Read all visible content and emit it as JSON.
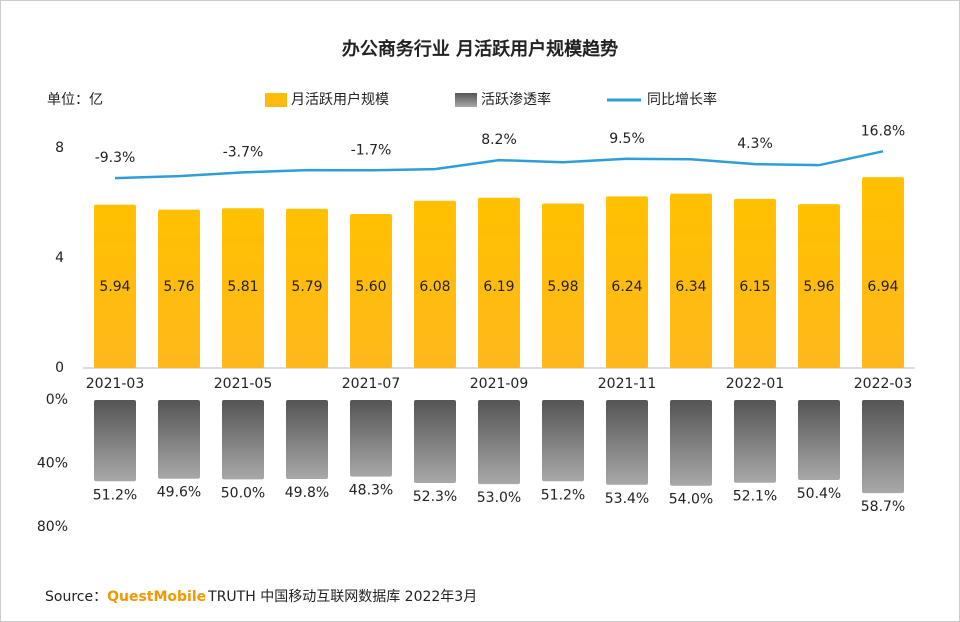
{
  "chart_data": [
    {
      "type": "bar",
      "title": "办公商务行业 月活跃用户规模趋势",
      "y_label": "单位：亿",
      "categories": [
        "2021-03",
        null,
        "2021-05",
        null,
        "2021-07",
        null,
        "2021-09",
        null,
        "2021-11",
        null,
        "2022-01",
        null,
        "2022-03"
      ],
      "ylim": [
        0,
        8
      ],
      "yticks": [
        0,
        4,
        8
      ],
      "y2lim": [
        -194,
        20
      ],
      "series": [
        {
          "name": "月活跃用户规模",
          "type": "bar",
          "color": "#FFC000",
          "values": [
            5.94,
            5.76,
            5.81,
            5.79,
            5.6,
            6.08,
            6.19,
            5.98,
            6.24,
            6.34,
            6.15,
            5.96,
            6.94
          ],
          "value_labels": [
            "5.94",
            "5.76",
            "5.81",
            "5.79",
            "5.60",
            "6.08",
            "6.19",
            "5.98",
            "6.24",
            "6.34",
            "6.15",
            "5.96",
            "6.94"
          ]
        },
        {
          "name": "同比增长率",
          "type": "line",
          "axis": "y2",
          "color": "#2E9FD6",
          "values": [
            -9.3,
            -7.4,
            -3.7,
            -1.5,
            -1.7,
            -0.5,
            8.2,
            6.2,
            9.5,
            9.0,
            4.3,
            3.3,
            16.8
          ],
          "value_labels": [
            "-9.3%",
            null,
            "-3.7%",
            null,
            "-1.7%",
            null,
            "8.2%",
            null,
            "9.5%",
            null,
            "4.3%",
            null,
            "16.8%"
          ]
        }
      ]
    },
    {
      "type": "bar",
      "reversed": true,
      "ylim": [
        0,
        80
      ],
      "yticks": [
        {
          "value": 0,
          "label": "0%"
        },
        {
          "value": 40,
          "label": "40%"
        },
        {
          "value": 80,
          "label": "80%"
        }
      ],
      "series": [
        {
          "name": "活跃渗透率",
          "type": "bar",
          "color": "#777777",
          "values": [
            51.2,
            49.6,
            50.0,
            49.8,
            48.3,
            52.3,
            53.0,
            51.2,
            53.4,
            54.0,
            52.1,
            50.4,
            58.7
          ],
          "value_labels": [
            "51.2%",
            "49.6%",
            "50.0%",
            "49.8%",
            "48.3%",
            "52.3%",
            "53.0%",
            "51.2%",
            "53.4%",
            "54.0%",
            "52.1%",
            "50.4%",
            "58.7%"
          ]
        }
      ]
    }
  ],
  "source": {
    "prefix": "Source：",
    "brand": "QuestMobile",
    "text": "TRUTH 中国移动互联网数据库 2022年3月"
  }
}
